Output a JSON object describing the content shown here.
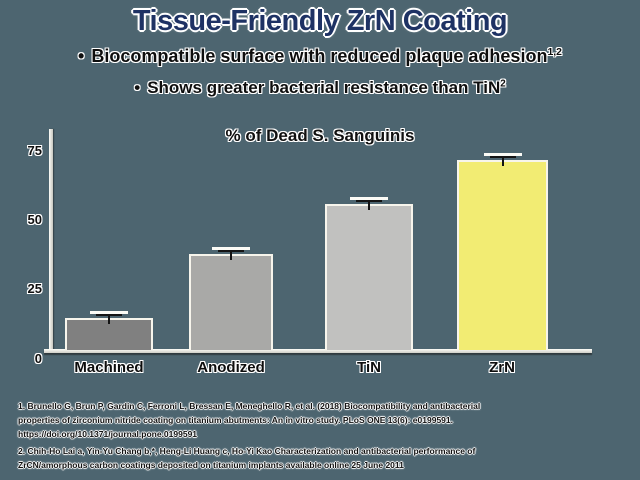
{
  "page": {
    "background_color": "#4d6570",
    "title_color": "#1e3264",
    "text_color": "#0e0e0e"
  },
  "header": {
    "title": "Tissue-Friendly ZrN Coating",
    "bullets": [
      {
        "marker": "•",
        "text": "Biocompatible surface with reduced plaque adhesion",
        "superscript": "1,2"
      },
      {
        "marker": "•",
        "text": "Shows greater bacterial resistance than TiN",
        "superscript": "2"
      }
    ]
  },
  "chart_data": {
    "type": "bar",
    "title": "% of Dead S. Sanguinis",
    "categories": [
      "Machined",
      "Anodized",
      "TiN",
      "ZrN"
    ],
    "values": [
      11,
      34,
      52,
      68
    ],
    "errors": [
      2,
      2,
      2,
      2
    ],
    "bar_colors": [
      "#808080",
      "#a9a9a7",
      "#c1c1bf",
      "#f2ec73"
    ],
    "xlabel": "",
    "ylabel": "",
    "ylim": [
      0,
      80
    ],
    "yticks": [
      0,
      25,
      50,
      75
    ],
    "grid": false,
    "legend_position": "none",
    "axis_color": "#f2f0e8"
  },
  "footnotes": {
    "ref1_lines": [
      "1. Brunello G, Brun P, Gardin C, Ferroni L, Bressan E, Meneghello R, et al. (2018) Biocompatibility and antibacterial",
      "properties of zirconium nitride coating on titanium abutments: An in vitro study. PLoS ONE 13(6): e0199591.",
      "https://doi.org/10.1371/journal.pone.0199591"
    ],
    "ref2_lines": [
      "2. Chih-Ho Lai a, Yin-Yu Chang b,*, Heng-Li Huang c, Ho-Yi Kao Characterization and antibacterial performance of",
      "ZrCN/amorphous carbon coatings deposited on titanium implants available online 25 June 2011"
    ]
  }
}
